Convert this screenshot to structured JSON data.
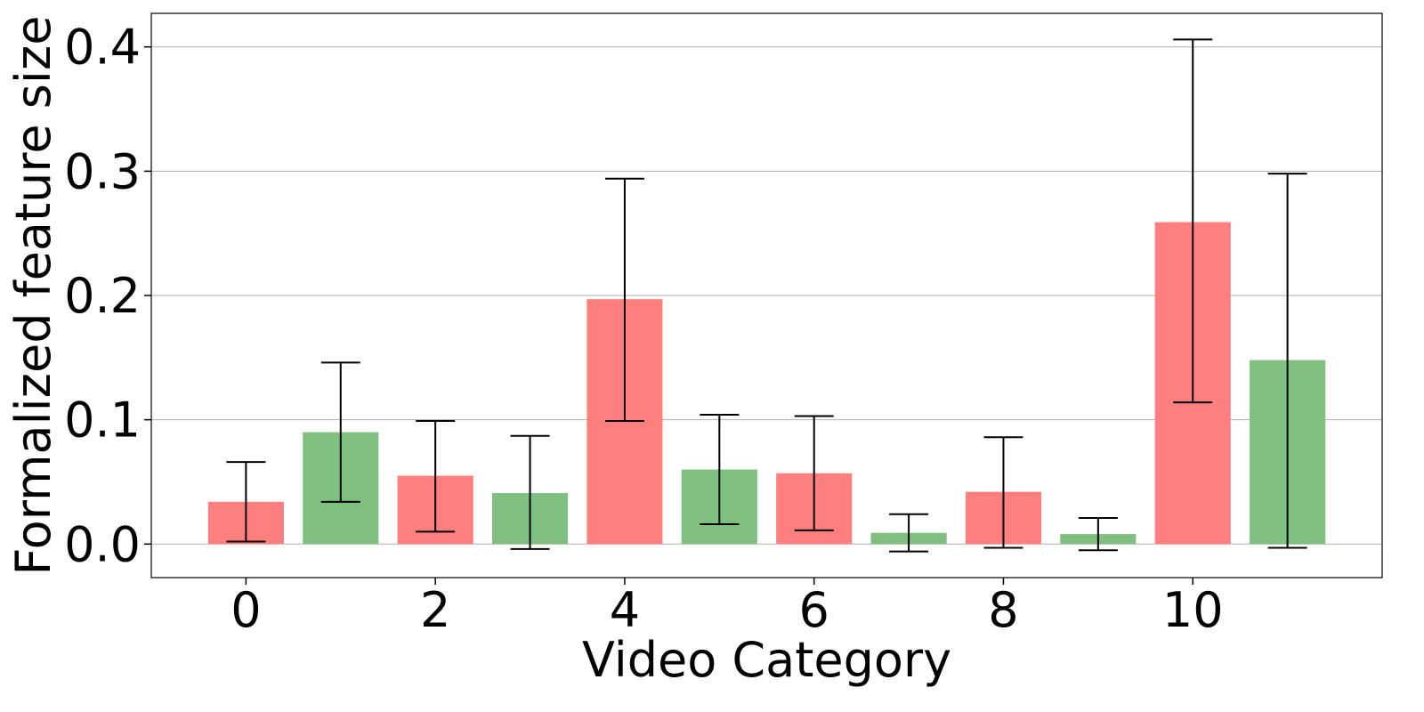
{
  "chart_data": {
    "type": "bar",
    "title": "",
    "xlabel": "Video Category",
    "ylabel": "Formalized feature size",
    "categories": [
      0,
      1,
      2,
      3,
      4,
      5,
      6,
      7,
      8,
      9,
      10,
      11
    ],
    "values": [
      0.034,
      0.09,
      0.055,
      0.041,
      0.197,
      0.06,
      0.057,
      0.009,
      0.042,
      0.008,
      0.259,
      0.148
    ],
    "error_lower": [
      0.002,
      0.034,
      0.01,
      -0.004,
      0.099,
      0.016,
      0.011,
      -0.006,
      -0.003,
      -0.005,
      0.114,
      -0.003
    ],
    "error_upper": [
      0.066,
      0.146,
      0.099,
      0.087,
      0.294,
      0.104,
      0.103,
      0.024,
      0.086,
      0.021,
      0.406,
      0.298
    ],
    "bar_colors": [
      "#ff7f7f",
      "#7fbf7f",
      "#ff7f7f",
      "#7fbf7f",
      "#ff7f7f",
      "#7fbf7f",
      "#ff7f7f",
      "#7fbf7f",
      "#ff7f7f",
      "#7fbf7f",
      "#ff7f7f",
      "#7fbf7f"
    ],
    "xticks": [
      0,
      2,
      4,
      6,
      8,
      10
    ],
    "xtick_labels": [
      "0",
      "2",
      "4",
      "6",
      "8",
      "10"
    ],
    "yticks": [
      0.0,
      0.1,
      0.2,
      0.3,
      0.4
    ],
    "ytick_labels": [
      "0.0",
      "0.1",
      "0.2",
      "0.3",
      "0.4"
    ],
    "xlim": [
      -1.0,
      12.0
    ],
    "ylim": [
      -0.027,
      0.427
    ],
    "grid": "horizontal",
    "legend": "none"
  }
}
